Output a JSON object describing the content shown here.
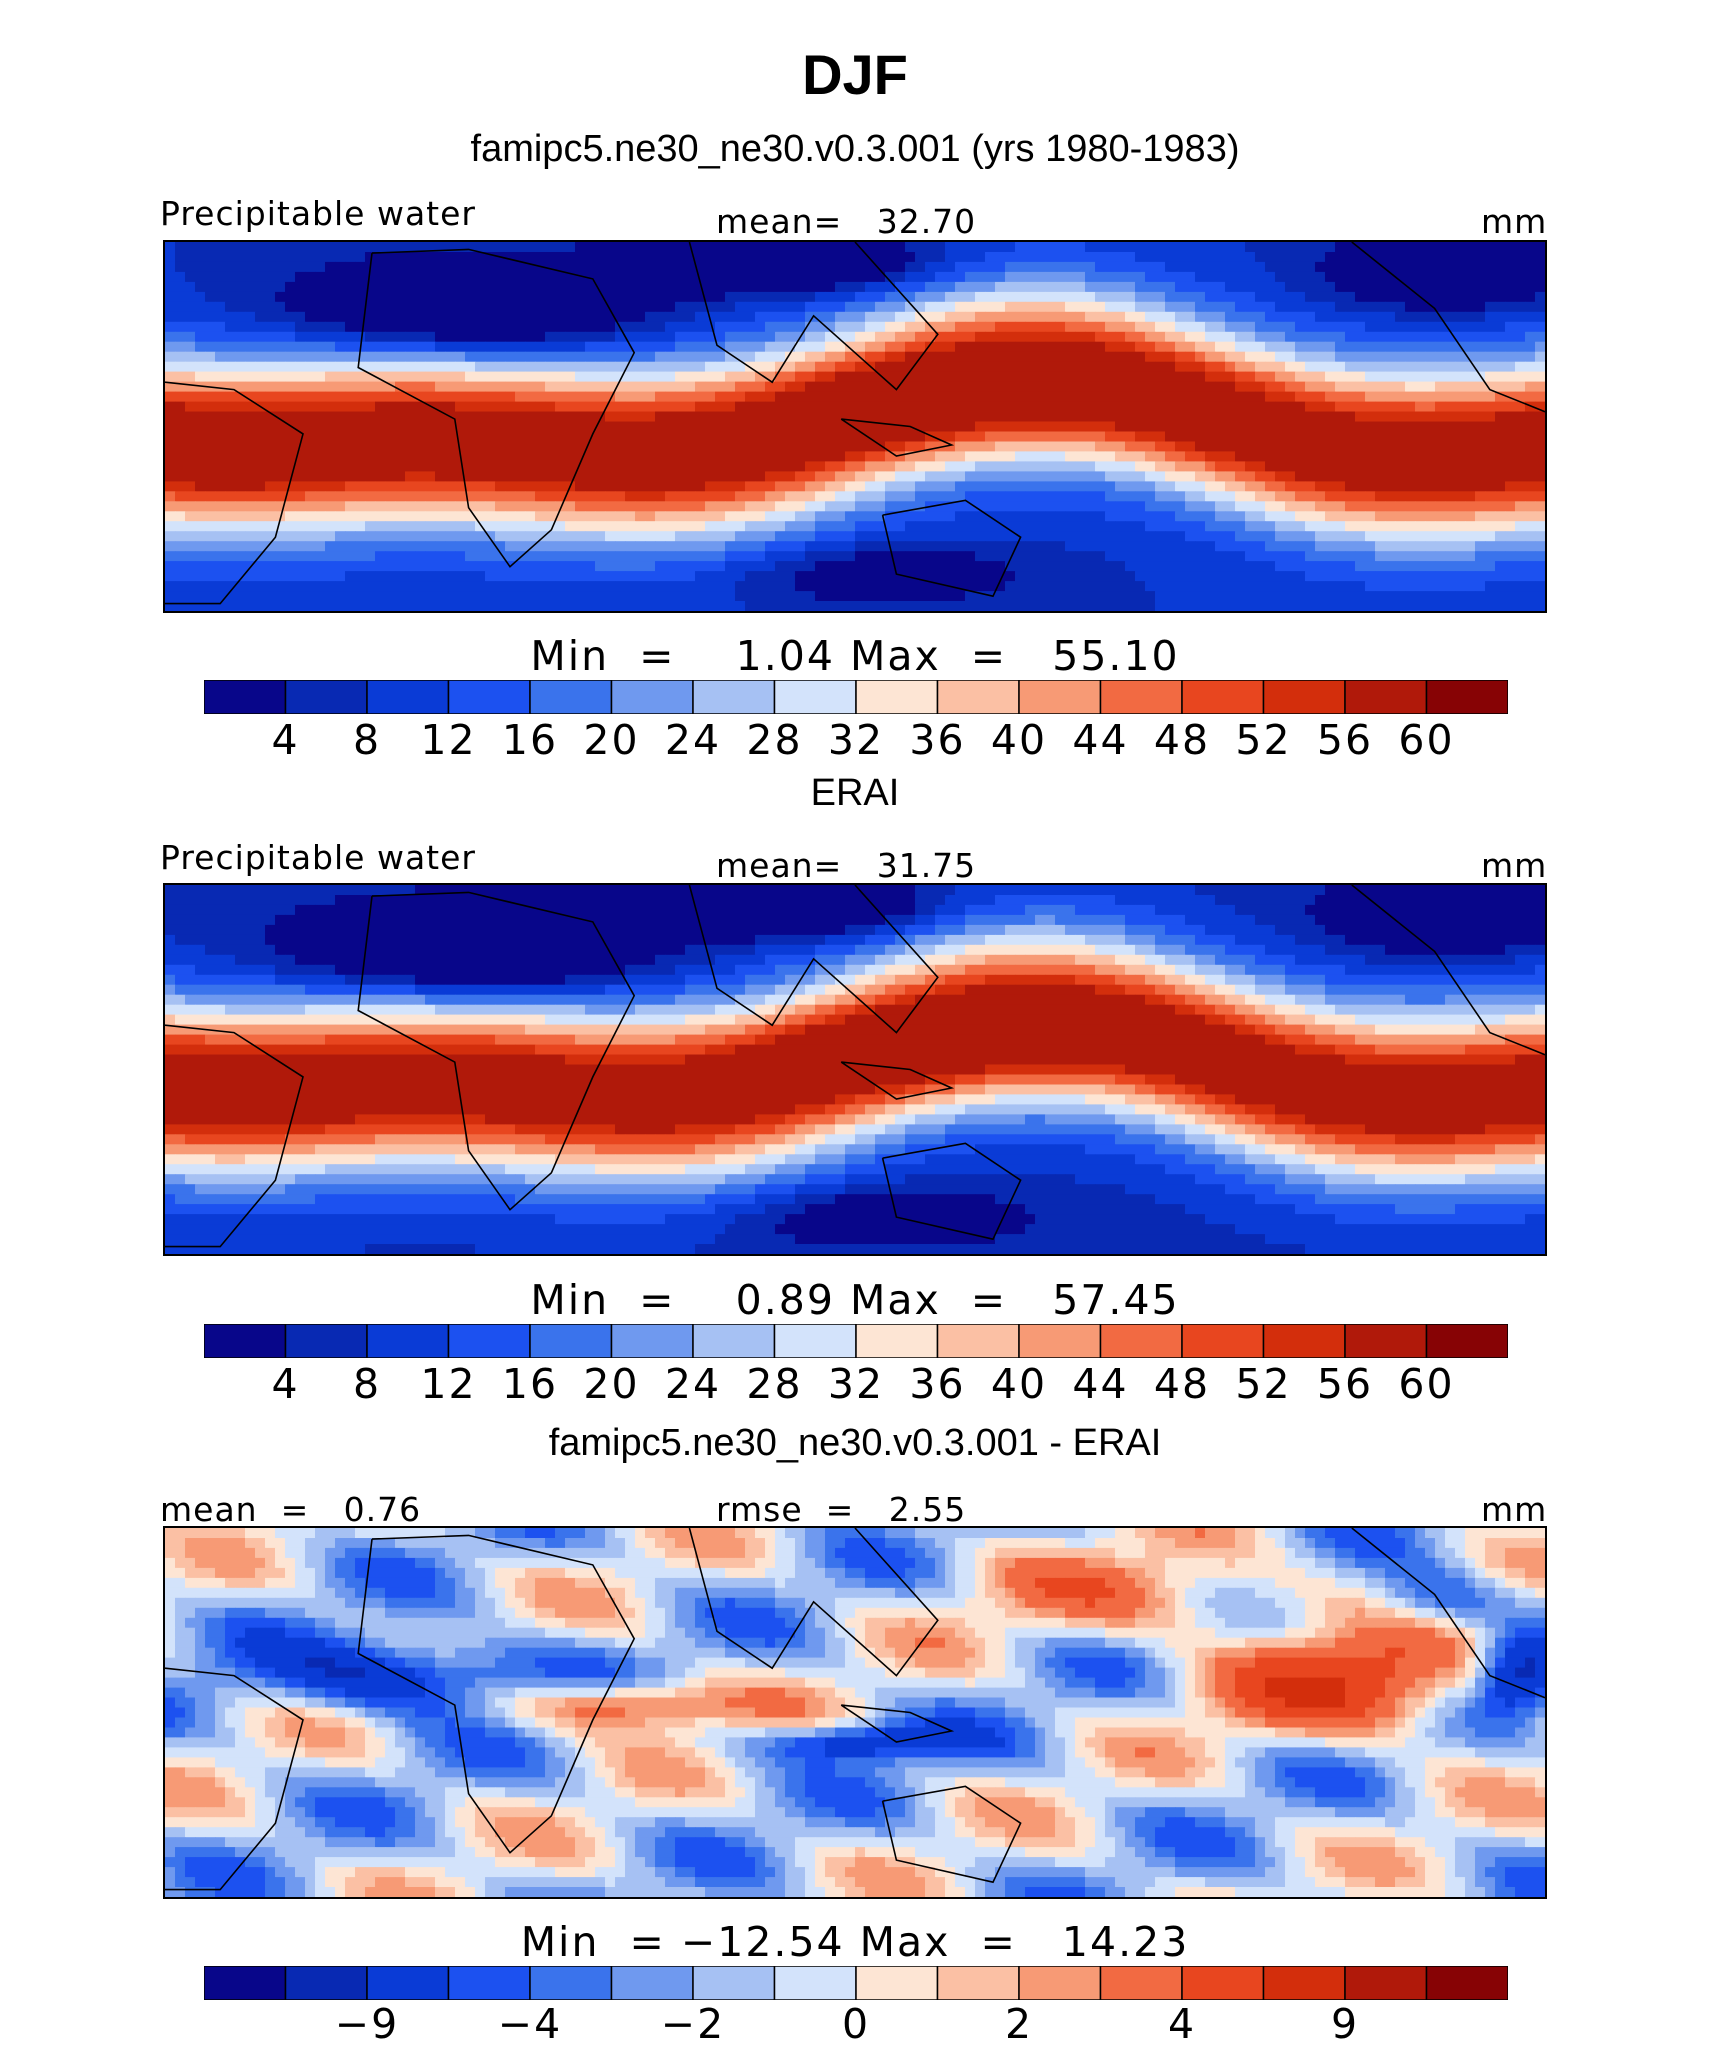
{
  "title": "DJF",
  "panels": [
    {
      "title": "famipc5.ne30_ne30.v0.3.001 (yrs 1980-1983)",
      "left_label": "Precipitable water",
      "center_label": "mean=   32.70",
      "right_label": "mm",
      "minmax": "Min  =    1.04 Max  =   55.10",
      "kind": "model"
    },
    {
      "title": "ERAI",
      "left_label": "Precipitable water",
      "center_label": "mean=   31.75",
      "right_label": "mm",
      "minmax": "Min  =    0.89 Max  =   57.45",
      "kind": "obs"
    },
    {
      "title": "famipc5.ne30_ne30.v0.3.001 - ERAI",
      "left_label": "mean  =   0.76",
      "center_label": "rmse  =   2.55",
      "right_label": "mm",
      "minmax": "Min  = −12.54 Max  =   14.23",
      "kind": "diff"
    }
  ],
  "colorbars": [
    {
      "ticks": [
        "4",
        "8",
        "12",
        "16",
        "20",
        "24",
        "28",
        "32",
        "36",
        "40",
        "44",
        "48",
        "52",
        "56",
        "60"
      ],
      "tick_positions": [
        1,
        2,
        3,
        4,
        5,
        6,
        7,
        8,
        9,
        10,
        11,
        12,
        13,
        14,
        15
      ]
    },
    {
      "ticks": [
        "4",
        "8",
        "12",
        "16",
        "20",
        "24",
        "28",
        "32",
        "36",
        "40",
        "44",
        "48",
        "52",
        "56",
        "60"
      ],
      "tick_positions": [
        1,
        2,
        3,
        4,
        5,
        6,
        7,
        8,
        9,
        10,
        11,
        12,
        13,
        14,
        15
      ]
    },
    {
      "ticks": [
        "−9",
        "−4",
        "−2",
        "0",
        "2",
        "4",
        "9"
      ],
      "tick_positions": [
        2,
        4,
        6,
        8,
        10,
        12,
        14
      ]
    }
  ],
  "colors": [
    "#08068a",
    "#0829b3",
    "#0a3bd6",
    "#1c51f0",
    "#3a73ec",
    "#6f99ef",
    "#a6c1f3",
    "#d3e3fb",
    "#fde5d4",
    "#fbc0a4",
    "#f79a75",
    "#f26a42",
    "#e8461f",
    "#d32e0c",
    "#b0190a",
    "#870305"
  ],
  "chart_data": [
    {
      "type": "heatmap",
      "title": "famipc5.ne30_ne30.v0.3.001 (yrs 1980-1983)",
      "variable": "Precipitable water",
      "units": "mm",
      "mean": 32.7,
      "min": 1.04,
      "max": 55.1,
      "contour_levels": [
        4,
        8,
        12,
        16,
        20,
        24,
        28,
        32,
        36,
        40,
        44,
        48,
        52,
        56,
        60
      ]
    },
    {
      "type": "heatmap",
      "title": "ERAI",
      "variable": "Precipitable water",
      "units": "mm",
      "mean": 31.75,
      "min": 0.89,
      "max": 57.45,
      "contour_levels": [
        4,
        8,
        12,
        16,
        20,
        24,
        28,
        32,
        36,
        40,
        44,
        48,
        52,
        56,
        60
      ]
    },
    {
      "type": "heatmap",
      "title": "famipc5.ne30_ne30.v0.3.001 - ERAI",
      "units": "mm",
      "mean": 0.76,
      "rmse": 2.55,
      "min": -12.54,
      "max": 14.23,
      "contour_level_labels": [
        "−9",
        "−4",
        "−2",
        "0",
        "2",
        "4",
        "9"
      ]
    }
  ]
}
